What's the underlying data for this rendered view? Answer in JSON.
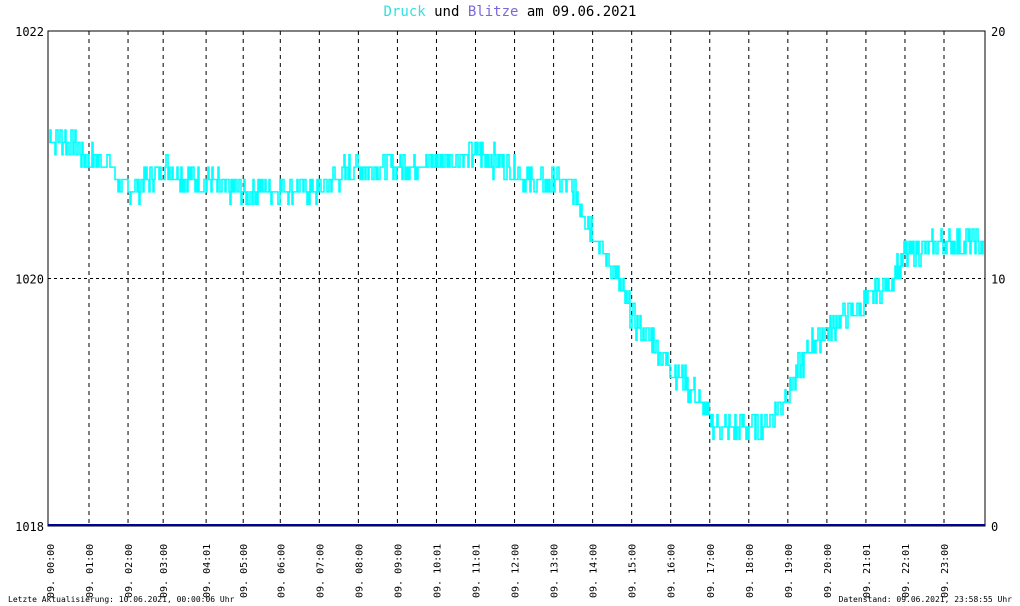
{
  "title": {
    "part1": "Druck",
    "part2": "und",
    "part3": "Blitze",
    "part4": "am 09.06.2021"
  },
  "colors": {
    "pressure": "#00ffff",
    "lightning": "#0000a0",
    "title_druck": "#33e0e0",
    "title_blitze": "#7b68d8",
    "grid": "#000000"
  },
  "footer": {
    "left": "Letzte Aktualisierung: 10.06.2021, 00:00:06 Uhr",
    "right": "Datenstand: 09.06.2021, 23:58:55 Uhr"
  },
  "chart_data": {
    "type": "line",
    "title": "Druck und Blitze am 09.06.2021",
    "xlabel": "",
    "ylabel_left": "",
    "ylabel_right": "",
    "y_left": {
      "min": 1018,
      "max": 1022,
      "ticks": [
        "1018",
        "1020",
        "1022"
      ]
    },
    "y_right": {
      "min": 0,
      "max": 20,
      "ticks": [
        "0",
        "10",
        "20"
      ]
    },
    "x_ticks": [
      "09. 00:00",
      "09. 01:00",
      "09. 02:00",
      "09. 03:00",
      "09. 04:01",
      "09. 05:00",
      "09. 06:00",
      "09. 07:00",
      "09. 08:00",
      "09. 09:00",
      "09. 10:01",
      "09. 11:01",
      "09. 12:00",
      "09. 13:00",
      "09. 14:00",
      "09. 15:00",
      "09. 16:00",
      "09. 17:00",
      "09. 18:00",
      "09. 19:00",
      "09. 20:00",
      "09. 21:01",
      "09. 22:01",
      "09. 23:00"
    ],
    "x_range_hours": [
      0,
      24
    ],
    "grid": true,
    "series": [
      {
        "axis": "left",
        "hours": [
          0,
          0.5,
          1,
          1.5,
          2,
          2.5,
          3,
          3.5,
          4,
          5,
          6,
          7,
          7.5,
          8,
          9,
          10,
          10.5,
          11,
          12,
          12.5,
          13,
          13.5,
          14,
          14.5,
          15,
          15.5,
          16,
          16.5,
          17,
          17.5,
          18,
          18.5,
          19,
          19.5,
          20,
          20.5,
          21,
          21.5,
          22,
          22.5,
          23,
          23.5,
          24
        ],
        "values": [
          1021.15,
          1021.12,
          1020.97,
          1020.95,
          1020.7,
          1020.78,
          1020.9,
          1020.82,
          1020.78,
          1020.7,
          1020.75,
          1020.72,
          1020.85,
          1020.9,
          1020.92,
          1020.95,
          1020.98,
          1021.0,
          1020.88,
          1020.75,
          1020.8,
          1020.7,
          1020.35,
          1020.05,
          1019.65,
          1019.5,
          1019.25,
          1019.1,
          1018.82,
          1018.78,
          1018.8,
          1018.85,
          1019.1,
          1019.45,
          1019.6,
          1019.7,
          1019.82,
          1019.95,
          1020.2,
          1020.25,
          1020.27,
          1020.3,
          1020.25
        ]
      },
      {
        "axis": "right",
        "hours": [
          0,
          24
        ],
        "values": [
          0,
          0
        ]
      }
    ]
  }
}
